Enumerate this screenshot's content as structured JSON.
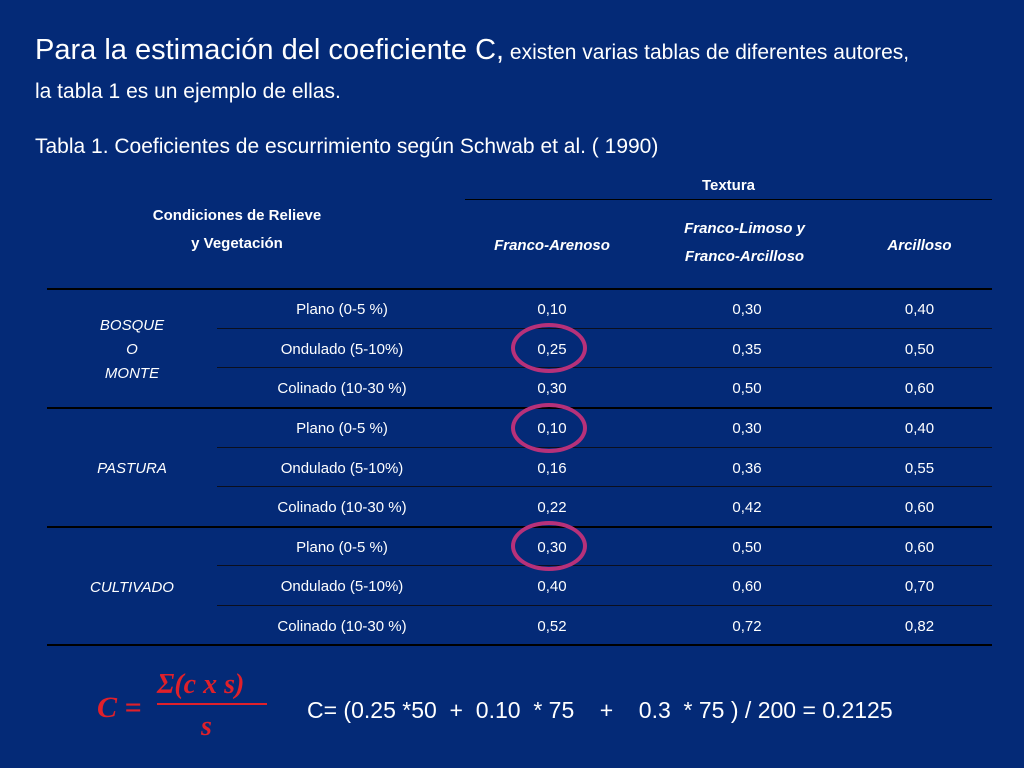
{
  "title": {
    "lead": "Para la estimación del coeficiente C,",
    "rest": " existen varias tablas de diferentes autores,",
    "line2": "la tabla 1 es un ejemplo de ellas."
  },
  "subtitle": "Tabla 1. Coeficientes de escurrimiento según Schwab et al. ( 1990)",
  "table": {
    "header": {
      "conditions_line1": "Condiciones de Relieve",
      "conditions_line2": "y Vegetación",
      "texture": "Textura",
      "col1": "Franco-Arenoso",
      "col2_line1": "Franco-Limoso y",
      "col2_line2": "Franco-Arcilloso",
      "col3": "Arcilloso"
    },
    "groups": [
      {
        "label_lines": [
          "BOSQUE",
          "O",
          "MONTE"
        ]
      },
      {
        "label_lines": [
          "PASTURA"
        ]
      },
      {
        "label_lines": [
          "CULTIVADO"
        ]
      }
    ],
    "rows": [
      {
        "relief": "Plano (0-5 %)",
        "v1": "0,10",
        "v2": "0,30",
        "v3": "0,40"
      },
      {
        "relief": "Ondulado (5-10%)",
        "v1": "0,25",
        "v2": "0,35",
        "v3": "0,50"
      },
      {
        "relief": "Colinado (10-30 %)",
        "v1": "0,30",
        "v2": "0,50",
        "v3": "0,60"
      },
      {
        "relief": "Plano (0-5 %)",
        "v1": "0,10",
        "v2": "0,30",
        "v3": "0,40"
      },
      {
        "relief": "Ondulado (5-10%)",
        "v1": "0,16",
        "v2": "0,36",
        "v3": "0,55"
      },
      {
        "relief": "Colinado (10-30 %)",
        "v1": "0,22",
        "v2": "0,42",
        "v3": "0,60"
      },
      {
        "relief": "Plano (0-5 %)",
        "v1": "0,30",
        "v2": "0,50",
        "v3": "0,60"
      },
      {
        "relief": "Ondulado (5-10%)",
        "v1": "0,40",
        "v2": "0,60",
        "v3": "0,70"
      },
      {
        "relief": "Colinado (10-30 %)",
        "v1": "0,52",
        "v2": "0,72",
        "v3": "0,82"
      }
    ],
    "highlight_color": "#b7317a"
  },
  "formula": {
    "lhs": "C =",
    "numerator": "Σ(c x s)",
    "denominator": "s",
    "color": "#e0202a"
  },
  "calculation": "C= (0.25 *50  +  0.10  * 75    +    0.3  * 75 ) / 200 = 0.2125"
}
